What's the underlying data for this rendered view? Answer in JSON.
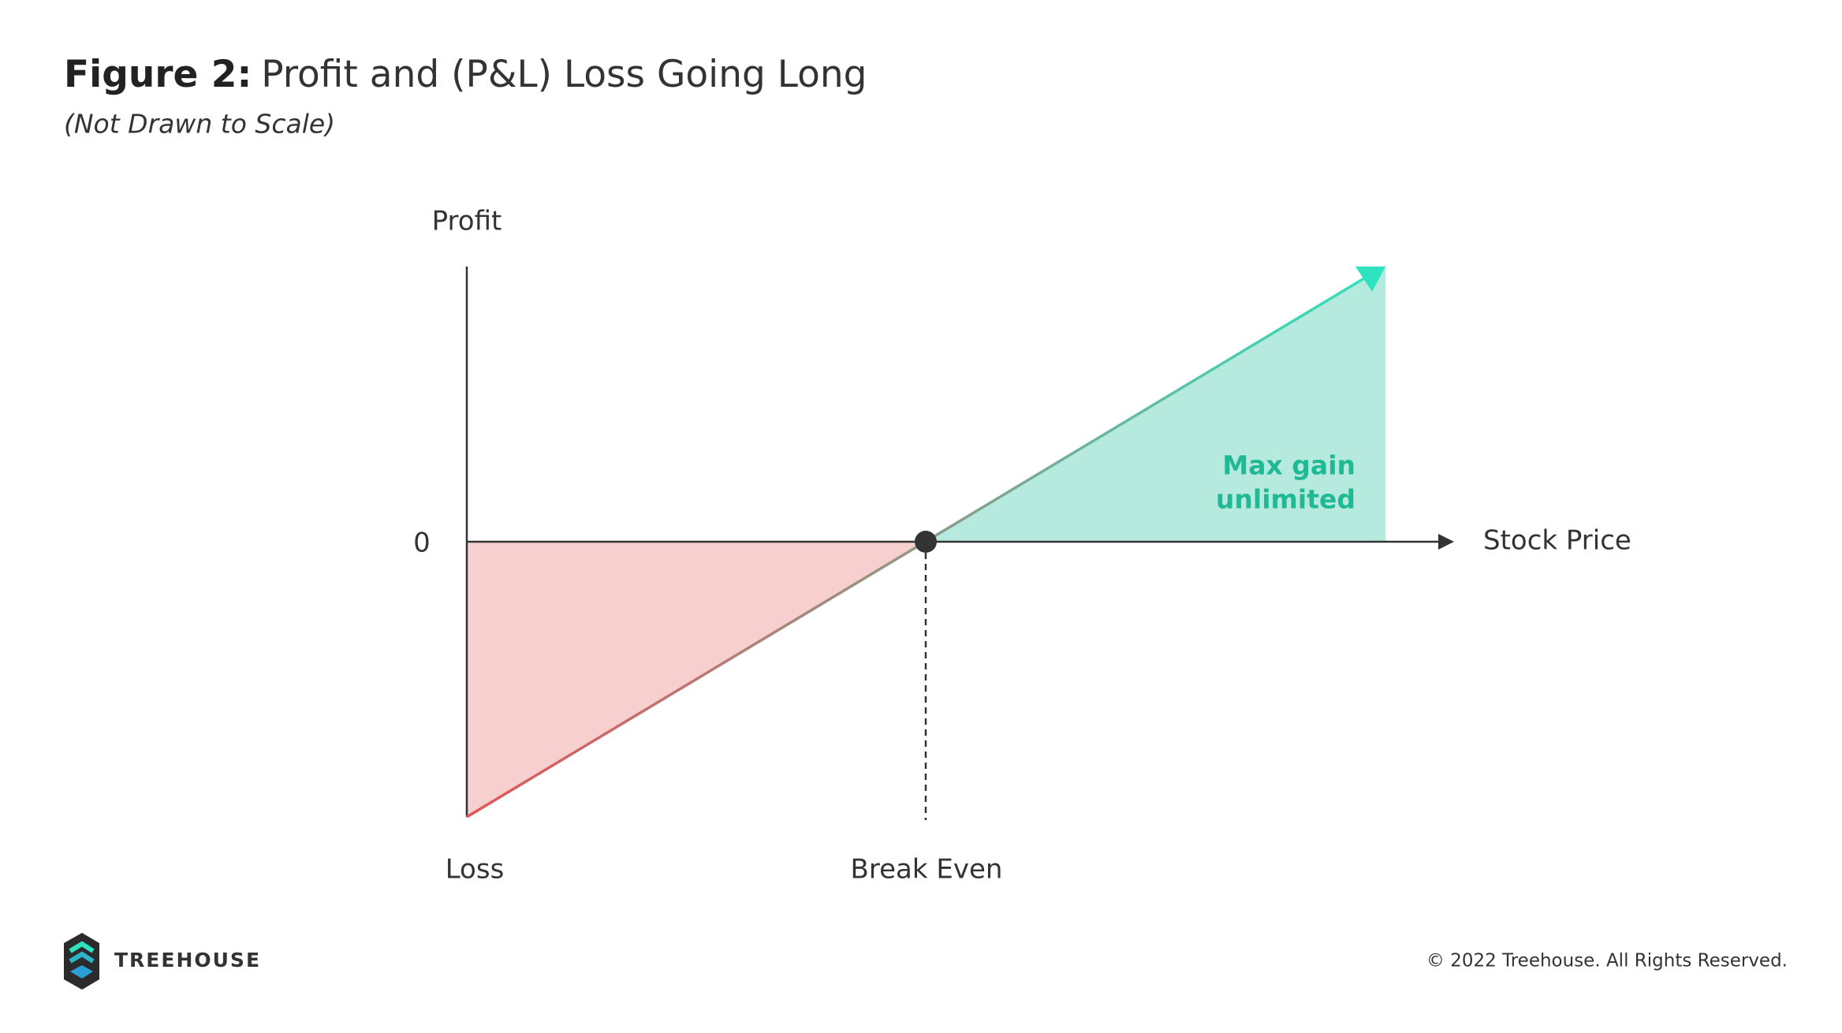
{
  "header": {
    "title_prefix": "Figure 2:",
    "title": "Profit and (P&L) Loss Going Long",
    "subtitle": "(Not Drawn to Scale)"
  },
  "diagram": {
    "y_axis_label": "Profit",
    "zero_label": "0",
    "x_axis_label": "Stock Price",
    "loss_label": "Loss",
    "break_even_label": "Break Even",
    "gain_annotation": [
      "Max gain",
      "unlimited"
    ]
  },
  "footer": {
    "brand": "TREEHOUSE",
    "copyright": "© 2022 Treehouse. All Rights Reserved."
  }
}
